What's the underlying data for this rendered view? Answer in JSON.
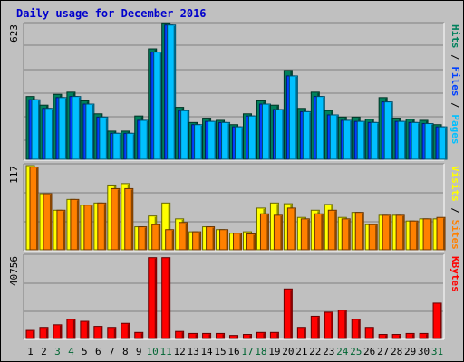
{
  "title": "Daily usage for December 2016",
  "colors": {
    "background": "#c0c0c0",
    "frame": "#ffffff",
    "weekday_label": "#000000",
    "weekend_label": "#006633",
    "hits": "#00805c",
    "files": "#0040ff",
    "pages": "#00c0ff",
    "visits": "#ffff00",
    "sites": "#ff8000",
    "kbytes": "#ff0000"
  },
  "chart_data": [
    {
      "type": "bar",
      "panel": "requests",
      "categories": [
        "1",
        "2",
        "3",
        "4",
        "5",
        "6",
        "7",
        "8",
        "9",
        "10",
        "11",
        "12",
        "13",
        "14",
        "15",
        "16",
        "17",
        "18",
        "19",
        "20",
        "21",
        "22",
        "23",
        "24",
        "25",
        "26",
        "27",
        "28",
        "29",
        "30",
        "31"
      ],
      "weekend_days": [
        "3",
        "4",
        "10",
        "11",
        "17",
        "18",
        "24",
        "25",
        "31"
      ],
      "ymax_label": "623",
      "ylim": [
        0,
        623
      ],
      "series": [
        {
          "name": "Hits",
          "values": [
            290,
            250,
            300,
            310,
            270,
            210,
            130,
            130,
            200,
            510,
            630,
            240,
            170,
            190,
            180,
            160,
            210,
            270,
            250,
            410,
            235,
            310,
            225,
            195,
            195,
            185,
            285,
            190,
            185,
            180,
            160
          ]
        },
        {
          "name": "Files",
          "values": [
            275,
            235,
            285,
            290,
            255,
            195,
            120,
            120,
            180,
            495,
            620,
            225,
            160,
            175,
            170,
            150,
            200,
            255,
            230,
            385,
            220,
            290,
            205,
            180,
            175,
            170,
            265,
            175,
            170,
            165,
            150
          ]
        },
        {
          "name": "Pages",
          "values": [
            275,
            235,
            285,
            290,
            255,
            195,
            120,
            120,
            180,
            495,
            620,
            225,
            160,
            175,
            170,
            150,
            200,
            255,
            230,
            385,
            220,
            290,
            205,
            180,
            175,
            170,
            265,
            175,
            170,
            165,
            150
          ]
        }
      ],
      "legend": [
        "Pages",
        "Files",
        "Hits"
      ],
      "legend_placement": "right"
    },
    {
      "type": "bar",
      "panel": "visitors",
      "categories": [
        "1",
        "2",
        "3",
        "4",
        "5",
        "6",
        "7",
        "8",
        "9",
        "10",
        "11",
        "12",
        "13",
        "14",
        "15",
        "16",
        "17",
        "18",
        "19",
        "20",
        "21",
        "22",
        "23",
        "24",
        "25",
        "26",
        "27",
        "28",
        "29",
        "30",
        "31"
      ],
      "ymax_label": "117",
      "ylim": [
        0,
        117
      ],
      "series": [
        {
          "name": "Visits",
          "values": [
            117,
            78,
            55,
            70,
            62,
            65,
            90,
            92,
            32,
            47,
            65,
            43,
            25,
            32,
            28,
            23,
            25,
            58,
            65,
            64,
            45,
            55,
            63,
            45,
            52,
            35,
            48,
            48,
            40,
            43,
            43
          ]
        },
        {
          "name": "Sites",
          "values": [
            115,
            78,
            55,
            70,
            62,
            65,
            85,
            85,
            32,
            35,
            28,
            38,
            25,
            32,
            28,
            23,
            22,
            50,
            48,
            58,
            43,
            50,
            55,
            43,
            52,
            35,
            48,
            48,
            40,
            43,
            45
          ]
        }
      ],
      "legend": [
        "Sites",
        "Visits"
      ],
      "legend_placement": "right"
    },
    {
      "type": "bar",
      "panel": "volume",
      "categories": [
        "1",
        "2",
        "3",
        "4",
        "5",
        "6",
        "7",
        "8",
        "9",
        "10",
        "11",
        "12",
        "13",
        "14",
        "15",
        "16",
        "17",
        "18",
        "19",
        "20",
        "21",
        "22",
        "23",
        "24",
        "25",
        "26",
        "27",
        "28",
        "29",
        "30",
        "31"
      ],
      "ymax_label": "40756",
      "ylim": [
        0,
        40756
      ],
      "series": [
        {
          "name": "KBytes",
          "values": [
            4000,
            5500,
            6800,
            9500,
            8500,
            6000,
            5500,
            7500,
            3000,
            40000,
            40000,
            3500,
            2500,
            2500,
            2500,
            1500,
            2000,
            3000,
            3000,
            24500,
            5500,
            11000,
            13000,
            14000,
            9500,
            5500,
            2000,
            2000,
            2500,
            2500,
            17500
          ]
        }
      ],
      "legend": [
        "KBytes"
      ],
      "legend_placement": "right"
    }
  ]
}
